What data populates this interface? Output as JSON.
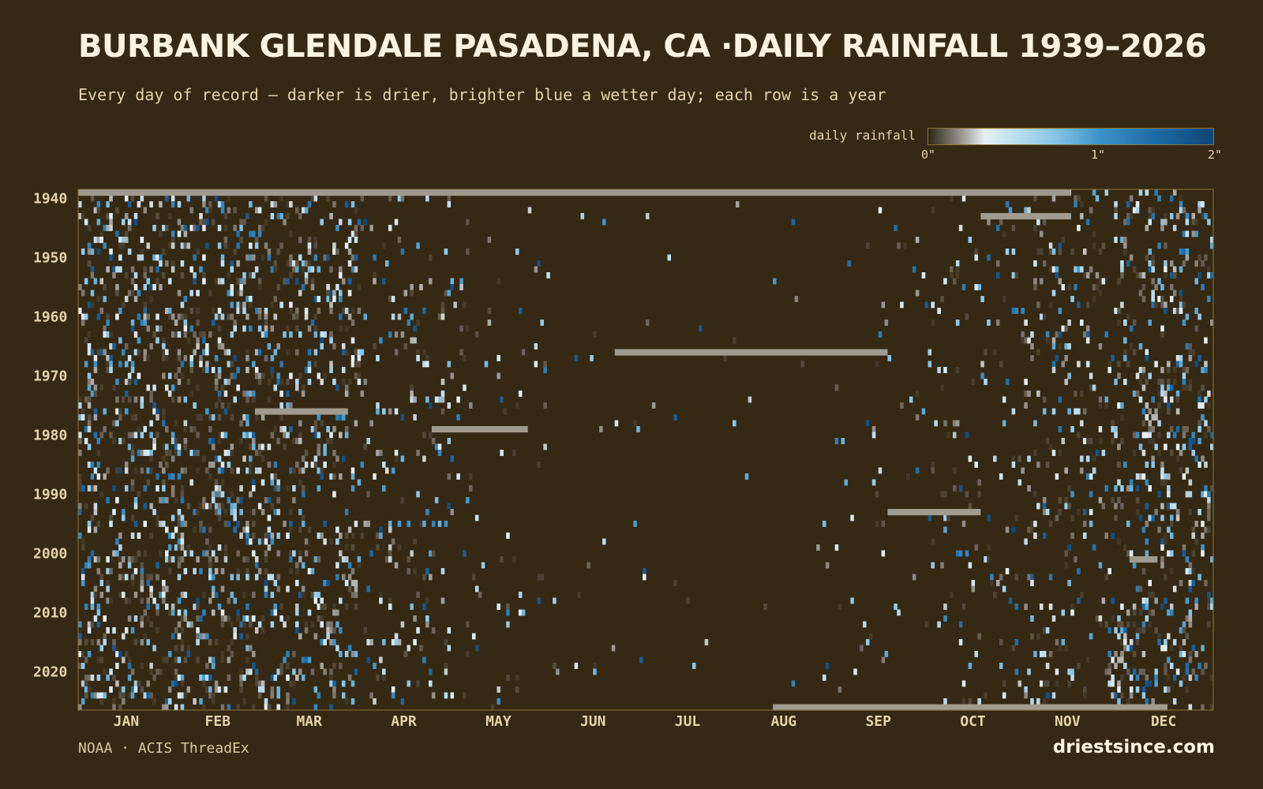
{
  "header": {
    "title": "BURBANK GLENDALE PASADENA, CA ·DAILY RAINFALL 1939–2026",
    "subtitle": "Every day of record — darker is drier, brighter blue a wetter day; each row is a year"
  },
  "legend": {
    "label": "daily rainfall",
    "ticks": [
      "0\"",
      "1\"",
      "2\""
    ]
  },
  "footer": {
    "source": "NOAA · ACIS ThreadEx",
    "brand": "driestsince.com"
  },
  "colors": {
    "background": "#352914",
    "frame": "#8d7538",
    "missing": "#a09a8f",
    "scale": [
      "#352914",
      "#8b8580",
      "#e8f1f6",
      "#b7dbef",
      "#84c4e6",
      "#3d93c8",
      "#1d6aa5",
      "#0e4478"
    ]
  },
  "chart_data": {
    "type": "heatmap",
    "title": "BURBANK GLENDALE PASADENA, CA ·DAILY RAINFALL 1939–2026",
    "x_categories": [
      "JAN",
      "FEB",
      "MAR",
      "APR",
      "MAY",
      "JUN",
      "JUL",
      "AUG",
      "SEP",
      "OCT",
      "NOV",
      "DEC"
    ],
    "y_tick_labels": [
      "1940",
      "1950",
      "1960",
      "1970",
      "1980",
      "1990",
      "2000",
      "2010",
      "2020"
    ],
    "y_range": [
      1939,
      2026
    ],
    "value_unit": "inches",
    "value_range": [
      0,
      2
    ],
    "grid": false,
    "legend_position": "top-right",
    "missing_spans": [
      {
        "year": 1939,
        "from_day": 1,
        "to_day": 320
      },
      {
        "year": 1943,
        "from_day": 292,
        "to_day": 320
      },
      {
        "year": 1966,
        "from_day": 174,
        "to_day": 261
      },
      {
        "year": 1976,
        "from_day": 58,
        "to_day": 87
      },
      {
        "year": 1979,
        "from_day": 115,
        "to_day": 145
      },
      {
        "year": 1993,
        "from_day": 262,
        "to_day": 291
      },
      {
        "year": 2001,
        "from_day": 340,
        "to_day": 348
      },
      {
        "year": 2026,
        "from_day": 225,
        "to_day": 351
      }
    ],
    "seasonal_wet_day_frequency": [
      0.22,
      0.22,
      0.18,
      0.08,
      0.03,
      0.008,
      0.004,
      0.008,
      0.02,
      0.05,
      0.11,
      0.19
    ]
  }
}
